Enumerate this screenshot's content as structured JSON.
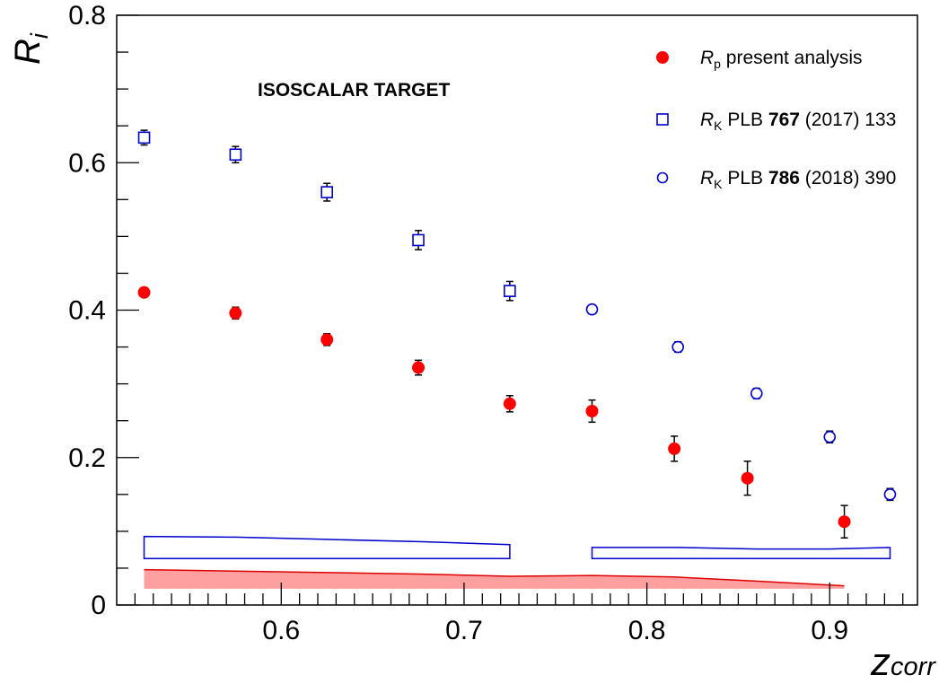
{
  "chart_data": {
    "type": "scatter",
    "xlabel": "z",
    "xlabel_sub": "corr",
    "ylabel": "R",
    "ylabel_sub": "i",
    "xlim": [
      0.51,
      0.948
    ],
    "ylim": [
      0,
      0.8
    ],
    "x_ticks": [
      "0.6",
      "0.7",
      "0.8",
      "0.9"
    ],
    "y_ticks": [
      "0",
      "0.2",
      "0.4",
      "0.6",
      "0.8"
    ],
    "annotation": "ISOSCALAR TARGET",
    "grid": false,
    "legend_position": "top-right",
    "series": [
      {
        "marker": "filled-circle",
        "color": "#ff0000",
        "legend": {
          "sym": "R",
          "sub": "p",
          "text": " present analysis"
        },
        "x": [
          0.525,
          0.575,
          0.625,
          0.675,
          0.725,
          0.77,
          0.815,
          0.855,
          0.908
        ],
        "y": [
          0.424,
          0.396,
          0.36,
          0.322,
          0.273,
          0.263,
          0.212,
          0.172,
          0.113
        ],
        "err": [
          0.006,
          0.008,
          0.008,
          0.01,
          0.011,
          0.015,
          0.017,
          0.023,
          0.022
        ]
      },
      {
        "marker": "open-square",
        "color": "#0000cc",
        "legend": {
          "sym": "R",
          "sub": "K",
          "text": " PLB ",
          "bold": "767",
          "rest": " (2017) 133"
        },
        "x": [
          0.525,
          0.575,
          0.625,
          0.675,
          0.725
        ],
        "y": [
          0.634,
          0.611,
          0.56,
          0.495,
          0.426
        ],
        "err": [
          0.01,
          0.011,
          0.012,
          0.013,
          0.013
        ]
      },
      {
        "marker": "open-circle",
        "color": "#0000cc",
        "legend": {
          "sym": "R",
          "sub": "K",
          "text": " PLB ",
          "bold": "786",
          "rest": " (2018) 390"
        },
        "x": [
          0.77,
          0.817,
          0.86,
          0.9,
          0.933
        ],
        "y": [
          0.401,
          0.35,
          0.287,
          0.228,
          0.15
        ],
        "err": [
          0.004,
          0.007,
          0.007,
          0.008,
          0.008
        ]
      }
    ],
    "systematic_bands": [
      {
        "style": "outline",
        "color": "#0000cc",
        "x": [
          0.525,
          0.575,
          0.625,
          0.675,
          0.725
        ],
        "low": [
          0.063,
          0.063,
          0.063,
          0.063,
          0.063
        ],
        "high": [
          0.093,
          0.092,
          0.089,
          0.086,
          0.082
        ]
      },
      {
        "style": "outline",
        "color": "#0000cc",
        "x": [
          0.77,
          0.817,
          0.86,
          0.9,
          0.933
        ],
        "low": [
          0.063,
          0.063,
          0.063,
          0.063,
          0.063
        ],
        "high": [
          0.078,
          0.078,
          0.076,
          0.076,
          0.078
        ]
      },
      {
        "style": "filled",
        "color": "#dd0000",
        "fill": "#ffa0a0",
        "x": [
          0.525,
          0.575,
          0.625,
          0.675,
          0.725,
          0.77,
          0.815,
          0.855,
          0.908
        ],
        "low": [
          0.022,
          0.022,
          0.022,
          0.022,
          0.022,
          0.022,
          0.022,
          0.022,
          0.022
        ],
        "high": [
          0.048,
          0.046,
          0.044,
          0.042,
          0.039,
          0.04,
          0.038,
          0.033,
          0.026
        ]
      }
    ]
  }
}
